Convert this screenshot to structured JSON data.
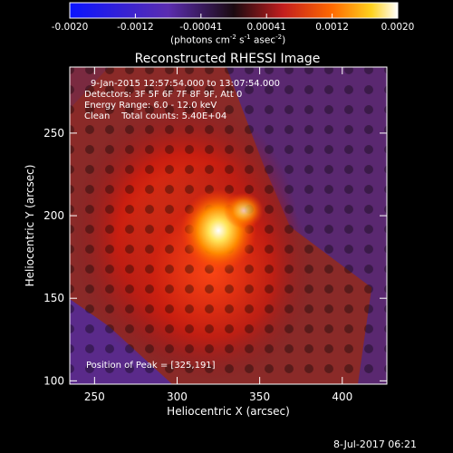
{
  "colorbar": {
    "ticks": [
      "-0.0020",
      "-0.0012",
      "-0.00041",
      "0.00041",
      "0.0012",
      "0.0020"
    ],
    "units_prefix": "(photons cm",
    "units_sup1": "-2",
    "units_mid": " s",
    "units_sup2": "-1",
    "units_mid2": " asec",
    "units_sup3": "-2",
    "units_suffix": ")"
  },
  "header": {
    "title": "Reconstructed RHESSI Image",
    "time_range": "9-Jan-2015 12:57:54.000 to 13:07:54.000",
    "detectors": "Detectors: 3F 5F 6F 7F 8F 9F, Att 0",
    "energy_range": "Energy Range: 6.0 - 12.0 keV",
    "clean_counts": "Clean    Total counts: 5.40E+04",
    "peak": "Position of Peak = [325,191]"
  },
  "footer": {
    "timestamp": "8-Jul-2017 06:21"
  },
  "chart_data": {
    "type": "heatmap",
    "title": "Reconstructed RHESSI Image",
    "xlabel": "Heliocentric X (arcsec)",
    "ylabel": "Heliocentric Y (arcsec)",
    "xlim": [
      235,
      427
    ],
    "ylim": [
      98,
      290
    ],
    "x_ticks": [
      250,
      300,
      350,
      400
    ],
    "y_ticks": [
      100,
      150,
      200,
      250
    ],
    "peak": {
      "x": 325,
      "y": 191
    },
    "color_range": [
      -0.002,
      0.002
    ],
    "colormap_stops": [
      "#0a14ff",
      "#5b2db0",
      "#c31e1e",
      "#ff6a00",
      "#ffd21e",
      "#ffffff"
    ]
  }
}
